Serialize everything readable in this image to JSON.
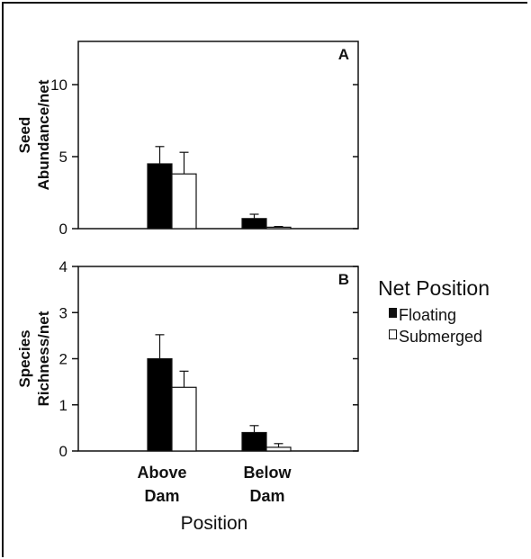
{
  "chart_data": [
    {
      "type": "bar",
      "panel_label": "A",
      "ylabel_lines": [
        "Seed",
        "Abundance/net"
      ],
      "categories": [
        "Above Dam",
        "Below Dam"
      ],
      "ylim": [
        0,
        13
      ],
      "yticks": [
        0,
        5,
        10
      ],
      "series": [
        {
          "name": "Floating",
          "color": "#000000",
          "values": [
            4.5,
            0.7
          ],
          "errors": [
            1.2,
            0.3
          ]
        },
        {
          "name": "Submerged",
          "color": "#ffffff",
          "values": [
            3.8,
            0.1
          ],
          "errors": [
            1.5,
            0.05
          ]
        }
      ],
      "grid": false
    },
    {
      "type": "bar",
      "panel_label": "B",
      "ylabel_lines": [
        "Species",
        "Richness/net"
      ],
      "categories": [
        "Above Dam",
        "Below Dam"
      ],
      "ylim": [
        0,
        4
      ],
      "yticks": [
        0,
        1,
        2,
        3,
        4
      ],
      "series": [
        {
          "name": "Floating",
          "color": "#000000",
          "values": [
            2.0,
            0.4
          ],
          "errors": [
            0.52,
            0.15
          ]
        },
        {
          "name": "Submerged",
          "color": "#ffffff",
          "values": [
            1.38,
            0.08
          ],
          "errors": [
            0.35,
            0.08
          ]
        }
      ],
      "grid": false
    }
  ],
  "x_axis": {
    "title": "Position",
    "category_lines": [
      [
        "Above",
        "Dam"
      ],
      [
        "Below",
        "Dam"
      ]
    ]
  },
  "legend": {
    "title": "Net Position",
    "placement": "right",
    "items": [
      {
        "label": "Floating",
        "marker": "filled-square"
      },
      {
        "label": "Submerged",
        "marker": "open-square"
      }
    ]
  }
}
